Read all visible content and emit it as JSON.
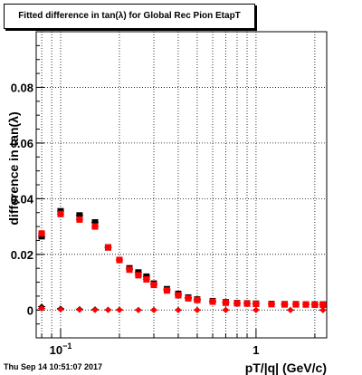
{
  "header": {
    "title": "Fitted difference in tan(λ) for Global Rec Pion EtapT"
  },
  "footer": {
    "timestamp": "Thu Sep 14 10:51:07 2017"
  },
  "chart_data": {
    "type": "scatter",
    "title": "Fitted difference in tan(λ) for Global Rec Pion EtapT",
    "xlabel": "pT/|q| (GeV/c)",
    "ylabel": "difference in tan(λ)",
    "xscale": "log",
    "xlim": [
      0.075,
      2.3
    ],
    "ylim": [
      -0.01,
      0.1
    ],
    "grid": true,
    "yticks": [
      {
        "value": 0,
        "label": "0"
      },
      {
        "value": 0.02,
        "label": "0.02"
      },
      {
        "value": 0.04,
        "label": "0.04"
      },
      {
        "value": 0.06,
        "label": "0.06"
      },
      {
        "value": 0.08,
        "label": "0.08"
      }
    ],
    "xticks": [
      {
        "value": 0.1,
        "label": "10",
        "exponent": "−1"
      },
      {
        "value": 1,
        "label": "1",
        "exponent": ""
      }
    ],
    "colors": {
      "black": "#000000",
      "red": "#ff0000"
    },
    "series": [
      {
        "marker": "square",
        "color": "#000000",
        "x": [
          0.08,
          0.1,
          0.125,
          0.15,
          0.175,
          0.2,
          0.225,
          0.25,
          0.275,
          0.3,
          0.35,
          0.4,
          0.45,
          0.5,
          0.6,
          0.7,
          0.8,
          0.9,
          1.0,
          1.2,
          1.4,
          1.6,
          1.8,
          2.0,
          2.2
        ],
        "y": [
          0.0265,
          0.0355,
          0.034,
          0.0315,
          0.0225,
          0.018,
          0.015,
          0.0135,
          0.012,
          0.0095,
          0.0075,
          0.0058,
          0.0045,
          0.0038,
          0.0032,
          0.0028,
          0.0025,
          0.0024,
          0.0023,
          0.0022,
          0.0021,
          0.0021,
          0.002,
          0.002,
          0.002
        ]
      },
      {
        "marker": "square",
        "color": "#ff0000",
        "x": [
          0.08,
          0.1,
          0.125,
          0.15,
          0.175,
          0.2,
          0.225,
          0.25,
          0.275,
          0.3,
          0.35,
          0.4,
          0.45,
          0.5,
          0.6,
          0.7,
          0.8,
          0.9,
          1.0,
          1.2,
          1.4,
          1.6,
          1.8,
          2.0,
          2.2
        ],
        "y": [
          0.0275,
          0.0345,
          0.0325,
          0.03,
          0.0225,
          0.018,
          0.0145,
          0.0125,
          0.011,
          0.009,
          0.007,
          0.0053,
          0.0042,
          0.0036,
          0.003,
          0.0026,
          0.0024,
          0.0023,
          0.0022,
          0.0021,
          0.002,
          0.002,
          0.002,
          0.0019,
          0.0019
        ]
      },
      {
        "marker": "diamond",
        "color": "#000000",
        "x": [
          0.08,
          0.1,
          0.125,
          0.15,
          0.175,
          0.2,
          0.25,
          0.3,
          0.4,
          0.5,
          0.7,
          1.0,
          1.5,
          2.2
        ],
        "y": [
          0.0012,
          0.0005,
          0.0003,
          0.0002,
          0.0001,
          0.0001,
          0.0,
          0.0,
          0.0,
          0.0,
          0.0,
          0.0,
          0.0,
          0.0
        ]
      },
      {
        "marker": "diamond",
        "color": "#ff0000",
        "x": [
          0.08,
          0.1,
          0.125,
          0.15,
          0.175,
          0.2,
          0.25,
          0.3,
          0.4,
          0.5,
          0.7,
          1.0,
          1.5,
          2.2
        ],
        "y": [
          0.0006,
          0.0002,
          0.0001,
          0.0,
          0.0,
          0.0,
          0.0,
          0.0,
          0.0,
          0.0,
          0.0,
          0.0,
          0.0,
          0.0
        ]
      }
    ]
  }
}
